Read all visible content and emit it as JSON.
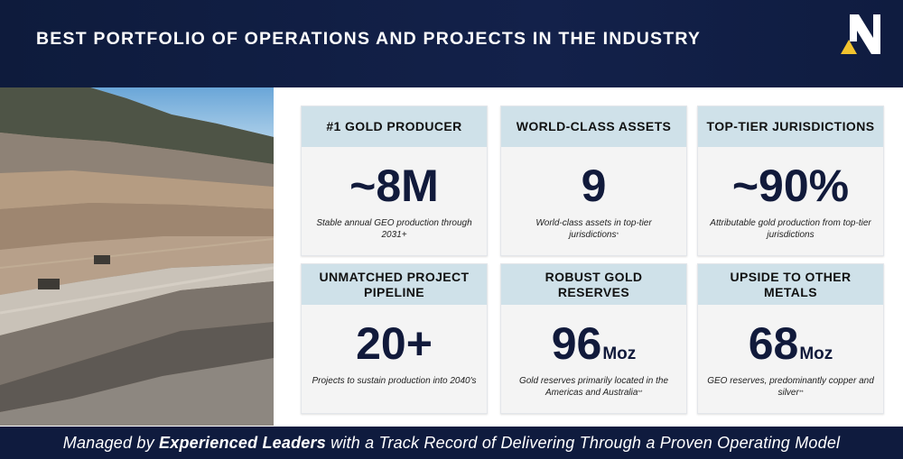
{
  "header": {
    "title": "BEST PORTFOLIO OF OPERATIONS AND PROJECTS IN THE INDUSTRY",
    "logo_letter": "N"
  },
  "cards": [
    {
      "heading": "#1 GOLD PRODUCER",
      "value": "~8M",
      "unit": "",
      "description": "Stable annual GEO production through 2031+",
      "footnote": ""
    },
    {
      "heading": "WORLD-CLASS ASSETS",
      "value": "9",
      "unit": "",
      "description": "World-class assets in top-tier jurisdictions",
      "footnote": "*"
    },
    {
      "heading": "TOP-TIER JURISDICTIONS",
      "value": "~90%",
      "unit": "",
      "description": "Attributable gold production from top-tier jurisdictions",
      "footnote": ""
    },
    {
      "heading": "UNMATCHED PROJECT PIPELINE",
      "value": "20+",
      "unit": "",
      "description": "Projects to sustain production into 2040's",
      "footnote": ""
    },
    {
      "heading": "ROBUST GOLD RESERVES",
      "value": "96",
      "unit": "Moz",
      "description": "Gold reserves primarily located in the Americas and Australia",
      "footnote": "**"
    },
    {
      "heading": "UPSIDE TO OTHER METALS",
      "value": "68",
      "unit": "Moz",
      "description": "GEO reserves, predominantly copper and silver",
      "footnote": "**"
    }
  ],
  "footer": {
    "prefix": "Managed by ",
    "emphasis": "Experienced Leaders",
    "suffix": " with a Track Record of Delivering Through a Proven Operating Model"
  },
  "colors": {
    "navy": "#0f1b3e",
    "card_header": "#cfe1e9",
    "logo_gold": "#f2c32e"
  }
}
